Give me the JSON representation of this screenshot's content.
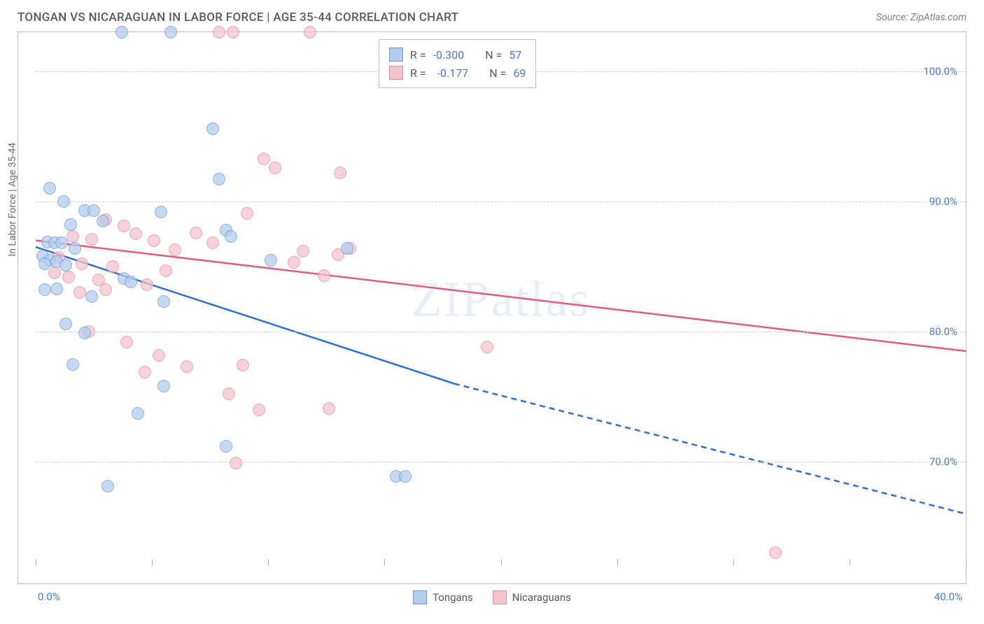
{
  "header": {
    "title": "TONGAN VS NICARAGUAN IN LABOR FORCE | AGE 35-44 CORRELATION CHART",
    "source_label": "Source: ",
    "source_name": "ZipAtlas.com"
  },
  "y_axis": {
    "title": "In Labor Force | Age 35-44",
    "min": 62,
    "max": 103,
    "ticks": [
      {
        "value": 70,
        "label": "70.0%"
      },
      {
        "value": 80,
        "label": "80.0%"
      },
      {
        "value": 90,
        "label": "90.0%"
      },
      {
        "value": 100,
        "label": "100.0%"
      }
    ]
  },
  "x_axis": {
    "min": 0,
    "max": 40,
    "label_left": "0.0%",
    "label_right": "40.0%",
    "tick_positions": [
      0,
      5,
      10,
      15,
      20,
      25,
      30,
      35,
      40
    ]
  },
  "series": {
    "tongans": {
      "label": "Tongans",
      "R": "-0.300",
      "N": "57",
      "point_fill": "#b4cdec",
      "point_stroke": "#6a9bd8",
      "line_color": "#2e6fd0",
      "trend_start": {
        "x": 0,
        "y": 86.5
      },
      "trend_solid_end": {
        "x": 18,
        "y": 76
      },
      "trend_dash_end": {
        "x": 40,
        "y": 66
      },
      "points": [
        {
          "x": 3.7,
          "y": 103
        },
        {
          "x": 5.8,
          "y": 103
        },
        {
          "x": 0.6,
          "y": 91
        },
        {
          "x": 1.2,
          "y": 90
        },
        {
          "x": 2.1,
          "y": 89.3
        },
        {
          "x": 2.5,
          "y": 89.3
        },
        {
          "x": 5.4,
          "y": 89.2
        },
        {
          "x": 2.9,
          "y": 88.5
        },
        {
          "x": 1.5,
          "y": 88.2
        },
        {
          "x": 7.6,
          "y": 95.6
        },
        {
          "x": 0.5,
          "y": 86.9
        },
        {
          "x": 0.8,
          "y": 86.8
        },
        {
          "x": 1.1,
          "y": 86.8
        },
        {
          "x": 1.7,
          "y": 86.4
        },
        {
          "x": 13.4,
          "y": 86.4
        },
        {
          "x": 0.3,
          "y": 85.8
        },
        {
          "x": 0.6,
          "y": 85.5
        },
        {
          "x": 0.9,
          "y": 85.4
        },
        {
          "x": 0.4,
          "y": 85.2
        },
        {
          "x": 1.3,
          "y": 85.1
        },
        {
          "x": 3.8,
          "y": 84.1
        },
        {
          "x": 4.1,
          "y": 83.8
        },
        {
          "x": 0.9,
          "y": 83.3
        },
        {
          "x": 0.4,
          "y": 83.2
        },
        {
          "x": 10.1,
          "y": 85.5
        },
        {
          "x": 2.4,
          "y": 82.7
        },
        {
          "x": 8.2,
          "y": 87.8
        },
        {
          "x": 8.4,
          "y": 87.3
        },
        {
          "x": 5.5,
          "y": 82.3
        },
        {
          "x": 1.3,
          "y": 80.6
        },
        {
          "x": 2.1,
          "y": 79.9
        },
        {
          "x": 1.6,
          "y": 77.5
        },
        {
          "x": 5.5,
          "y": 75.8
        },
        {
          "x": 4.4,
          "y": 73.7
        },
        {
          "x": 8.2,
          "y": 71.2
        },
        {
          "x": 3.1,
          "y": 68.1
        },
        {
          "x": 15.5,
          "y": 68.9
        },
        {
          "x": 15.9,
          "y": 68.9
        },
        {
          "x": 7.9,
          "y": 91.7
        }
      ]
    },
    "nicaraguans": {
      "label": "Nicaraguans",
      "R": "-0.177",
      "N": "69",
      "point_fill": "#f3c4ce",
      "point_stroke": "#e58ba0",
      "line_color": "#e15a7e",
      "trend_start": {
        "x": 0,
        "y": 87
      },
      "trend_end": {
        "x": 40,
        "y": 78.5
      },
      "points": [
        {
          "x": 7.9,
          "y": 103
        },
        {
          "x": 8.5,
          "y": 103
        },
        {
          "x": 11.8,
          "y": 103
        },
        {
          "x": 3.0,
          "y": 88.6
        },
        {
          "x": 3.8,
          "y": 88.1
        },
        {
          "x": 4.3,
          "y": 87.5
        },
        {
          "x": 1.6,
          "y": 87.3
        },
        {
          "x": 2.4,
          "y": 87.1
        },
        {
          "x": 5.1,
          "y": 87.0
        },
        {
          "x": 6.0,
          "y": 86.3
        },
        {
          "x": 1.0,
          "y": 85.7
        },
        {
          "x": 2.0,
          "y": 85.2
        },
        {
          "x": 3.3,
          "y": 85.0
        },
        {
          "x": 5.6,
          "y": 84.7
        },
        {
          "x": 0.8,
          "y": 84.5
        },
        {
          "x": 1.4,
          "y": 84.2
        },
        {
          "x": 2.7,
          "y": 84.0
        },
        {
          "x": 4.8,
          "y": 83.6
        },
        {
          "x": 3.0,
          "y": 83.2
        },
        {
          "x": 1.9,
          "y": 83.0
        },
        {
          "x": 6.9,
          "y": 87.6
        },
        {
          "x": 7.6,
          "y": 86.8
        },
        {
          "x": 9.1,
          "y": 89.1
        },
        {
          "x": 11.5,
          "y": 86.2
        },
        {
          "x": 11.1,
          "y": 85.3
        },
        {
          "x": 12.4,
          "y": 84.3
        },
        {
          "x": 13.0,
          "y": 85.9
        },
        {
          "x": 13.5,
          "y": 86.4
        },
        {
          "x": 9.8,
          "y": 93.3
        },
        {
          "x": 10.3,
          "y": 92.6
        },
        {
          "x": 2.3,
          "y": 80.0
        },
        {
          "x": 3.9,
          "y": 79.2
        },
        {
          "x": 5.3,
          "y": 78.2
        },
        {
          "x": 6.5,
          "y": 77.3
        },
        {
          "x": 4.7,
          "y": 76.9
        },
        {
          "x": 8.9,
          "y": 77.4
        },
        {
          "x": 8.3,
          "y": 75.2
        },
        {
          "x": 9.6,
          "y": 74.0
        },
        {
          "x": 12.6,
          "y": 74.1
        },
        {
          "x": 8.6,
          "y": 69.9
        },
        {
          "x": 13.1,
          "y": 92.2
        },
        {
          "x": 19.4,
          "y": 78.8
        },
        {
          "x": 31.8,
          "y": 63.0
        }
      ]
    }
  },
  "stats_box": {
    "R_label": "R =",
    "N_label": "N ="
  },
  "watermark": "ZIPatlas"
}
